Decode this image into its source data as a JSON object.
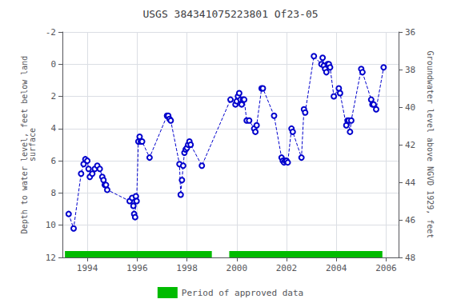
{
  "chart_data": {
    "type": "line",
    "title": "USGS 384341075223801 Of23-05",
    "ylabel": "Depth to water level, feet below land\nsurface",
    "y2label": "Groundwater level above NGVD 1929, feet",
    "xlim": [
      1993.0,
      2006.5
    ],
    "xticks": [
      1994,
      1996,
      1998,
      2000,
      2002,
      2004,
      2006
    ],
    "ylim": [
      12,
      -2
    ],
    "yticks": [
      -2,
      0,
      2,
      4,
      6,
      8,
      10,
      12
    ],
    "y2lim": [
      48,
      36
    ],
    "y2ticks": [
      48,
      46,
      44,
      42,
      40,
      38,
      36
    ],
    "grid": true,
    "legend": "bottom",
    "color": "#0000cc",
    "marker": "circle",
    "line_style": "dashed",
    "x": [
      1993.25,
      1993.45,
      1993.75,
      1993.85,
      1993.92,
      1994.0,
      1994.05,
      1994.1,
      1994.2,
      1994.3,
      1994.4,
      1994.5,
      1994.6,
      1994.65,
      1994.7,
      1994.75,
      1994.8,
      1995.7,
      1995.8,
      1995.85,
      1995.88,
      1995.92,
      1995.95,
      1995.98,
      1996.05,
      1996.1,
      1996.15,
      1996.2,
      1996.5,
      1997.2,
      1997.25,
      1997.3,
      1997.35,
      1997.7,
      1997.75,
      1997.8,
      1997.85,
      1997.9,
      1997.95,
      1998.0,
      1998.05,
      1998.1,
      1998.15,
      1998.6,
      1999.75,
      1999.95,
      2000.0,
      2000.05,
      2000.1,
      2000.15,
      2000.2,
      2000.25,
      2000.3,
      2000.4,
      2000.5,
      2000.7,
      2000.75,
      2000.8,
      2001.0,
      2001.05,
      2001.5,
      2001.8,
      2001.85,
      2001.9,
      2001.95,
      2002.0,
      2002.05,
      2002.2,
      2002.25,
      2002.6,
      2002.7,
      2002.75,
      2003.1,
      2003.4,
      2003.45,
      2003.5,
      2003.55,
      2003.6,
      2003.65,
      2003.7,
      2003.75,
      2003.9,
      2004.1,
      2004.15,
      2004.4,
      2004.45,
      2004.5,
      2004.55,
      2004.6,
      2005.0,
      2005.05,
      2005.4,
      2005.45,
      2005.5,
      2005.6,
      2005.9
    ],
    "values": [
      9.3,
      10.2,
      6.8,
      6.2,
      5.9,
      6.0,
      6.5,
      7.0,
      6.8,
      6.5,
      6.3,
      6.5,
      7.0,
      7.2,
      7.5,
      7.5,
      7.8,
      8.5,
      8.3,
      8.8,
      9.3,
      9.5,
      8.2,
      8.5,
      4.8,
      4.5,
      4.8,
      4.8,
      5.8,
      3.2,
      3.2,
      3.4,
      3.5,
      6.2,
      8.1,
      7.2,
      6.3,
      5.5,
      5.3,
      5.2,
      5.0,
      4.8,
      5.0,
      6.3,
      2.2,
      2.5,
      2.3,
      2.0,
      1.8,
      2.2,
      2.5,
      2.2,
      2.2,
      3.5,
      3.5,
      4.0,
      4.2,
      3.8,
      1.5,
      1.5,
      3.2,
      5.8,
      6.0,
      6.1,
      6.0,
      6.0,
      6.1,
      4.0,
      4.2,
      5.8,
      2.8,
      3.0,
      -0.5,
      0.0,
      -0.4,
      0.1,
      0.3,
      0.5,
      0.0,
      0.0,
      0.2,
      2.0,
      1.5,
      1.8,
      3.8,
      3.5,
      3.5,
      4.2,
      3.5,
      0.3,
      0.5,
      2.2,
      2.5,
      2.5,
      2.8,
      0.2
    ],
    "approved_label": "Period of approved data",
    "approved_color": "#00bb00",
    "approved_periods": [
      [
        1993.1,
        1999.0
      ],
      [
        1999.7,
        2005.85
      ]
    ]
  }
}
